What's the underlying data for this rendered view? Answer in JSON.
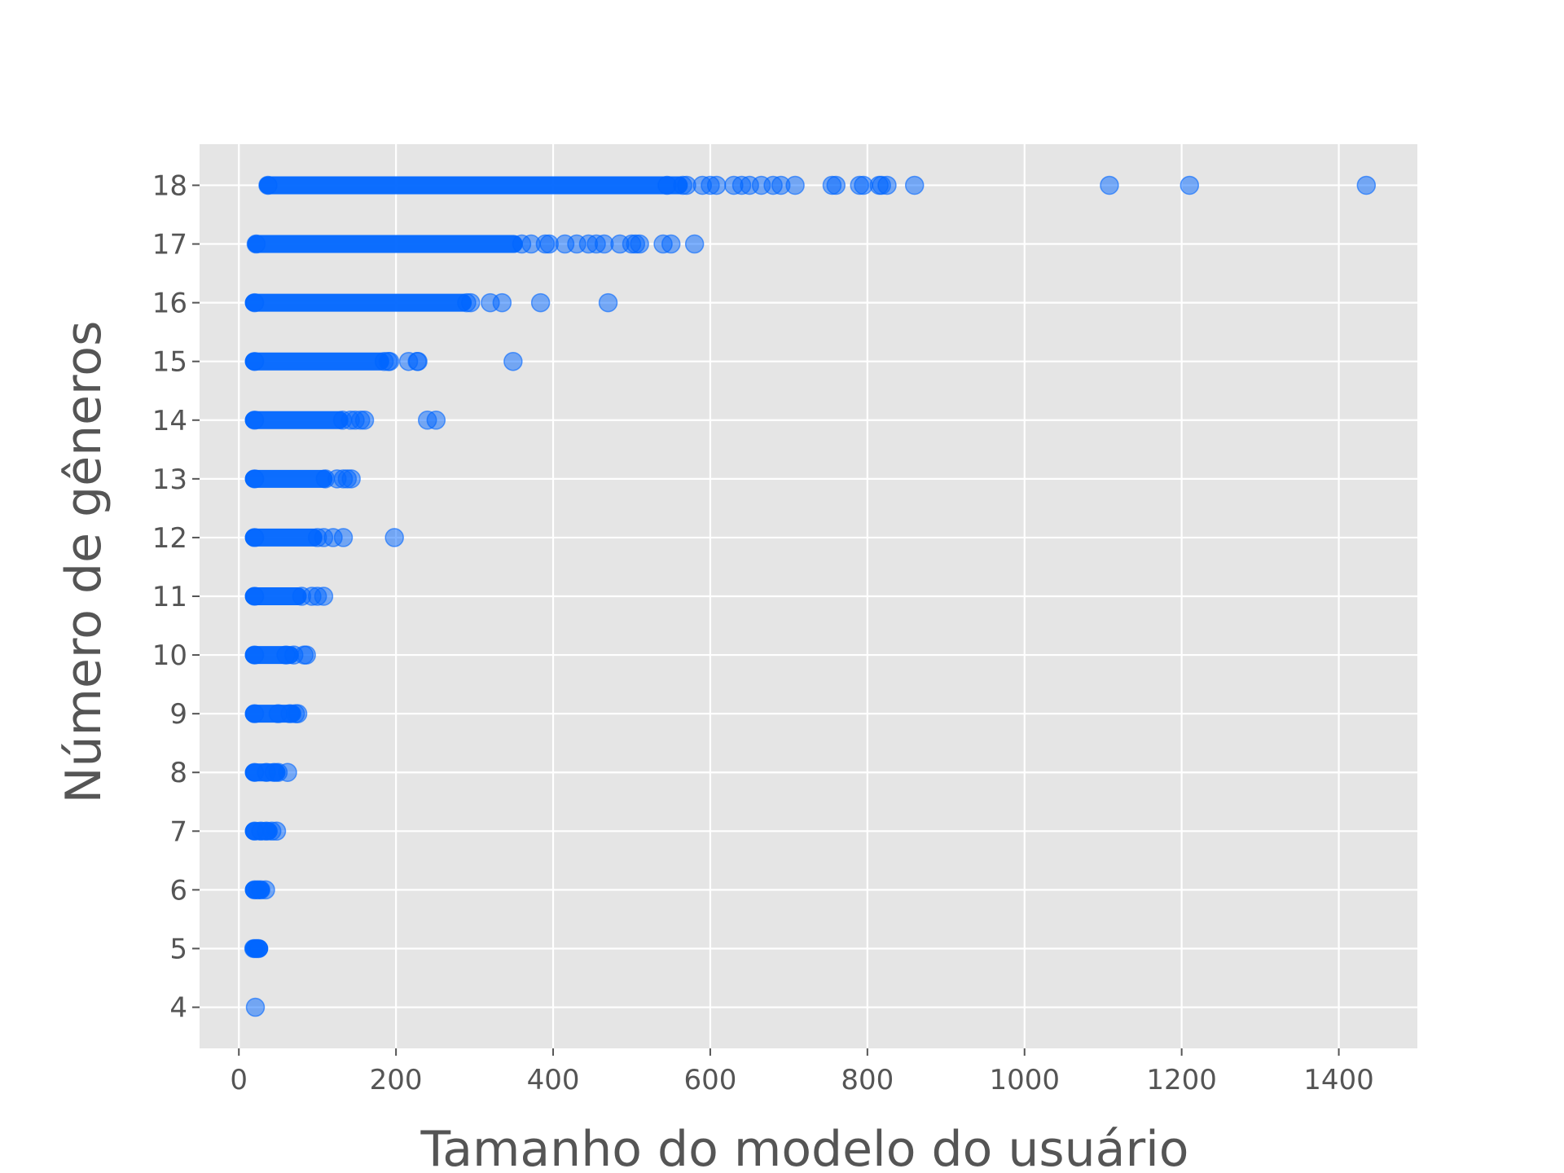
{
  "chart_data": {
    "type": "scatter",
    "title": "",
    "xlabel": "Tamanho do modelo do usuário",
    "ylabel": "Número de gêneros",
    "xlim": [
      -50,
      1500
    ],
    "ylim": [
      3.3,
      18.7
    ],
    "xticks": [
      0,
      200,
      400,
      600,
      800,
      1000,
      1200,
      1400
    ],
    "yticks": [
      4,
      5,
      6,
      7,
      8,
      9,
      10,
      11,
      12,
      13,
      14,
      15,
      16,
      17,
      18
    ],
    "grid": true,
    "background": "#e5e5e5",
    "grid_color": "#ffffff",
    "marker_color": "#0066ff",
    "marker_alpha": 0.5,
    "rows": [
      {
        "y": 4,
        "dense": null,
        "points": [
          21
        ]
      },
      {
        "y": 5,
        "dense": [
          19,
          26
        ],
        "points": [
          19,
          22,
          25
        ]
      },
      {
        "y": 6,
        "dense": [
          19,
          28
        ],
        "points": [
          20,
          24,
          28,
          34
        ]
      },
      {
        "y": 7,
        "dense": [
          19,
          38
        ],
        "points": [
          20,
          28,
          35,
          42,
          48
        ]
      },
      {
        "y": 8,
        "dense": [
          19,
          48
        ],
        "points": [
          20,
          35,
          45,
          50,
          62
        ]
      },
      {
        "y": 9,
        "dense": [
          19,
          68
        ],
        "points": [
          20,
          50,
          65,
          72,
          75
        ]
      },
      {
        "y": 10,
        "dense": [
          19,
          65
        ],
        "points": [
          20,
          60,
          70,
          83,
          86
        ]
      },
      {
        "y": 11,
        "dense": [
          19,
          75
        ],
        "points": [
          20,
          80,
          93,
          100,
          108
        ]
      },
      {
        "y": 12,
        "dense": [
          19,
          95
        ],
        "points": [
          20,
          100,
          108,
          120,
          133,
          198
        ]
      },
      {
        "y": 13,
        "dense": [
          19,
          108
        ],
        "points": [
          20,
          110,
          125,
          133,
          138,
          143
        ]
      },
      {
        "y": 14,
        "dense": [
          19,
          128
        ],
        "points": [
          20,
          132,
          142,
          148,
          155,
          160,
          240,
          251
        ]
      },
      {
        "y": 15,
        "dense": [
          19,
          180
        ],
        "points": [
          20,
          185,
          190,
          192,
          216,
          227,
          228,
          349
        ]
      },
      {
        "y": 16,
        "dense": [
          19,
          285
        ],
        "points": [
          20,
          290,
          295,
          320,
          335,
          384,
          470
        ]
      },
      {
        "y": 17,
        "dense": [
          22,
          350
        ],
        "points": [
          22,
          360,
          372,
          390,
          395,
          415,
          430,
          445,
          455,
          465,
          485,
          500,
          505,
          510,
          540,
          550,
          580
        ]
      },
      {
        "y": 18,
        "dense": [
          37,
          560
        ],
        "points": [
          37,
          545,
          565,
          570,
          590,
          600,
          608,
          630,
          640,
          650,
          665,
          680,
          690,
          708,
          755,
          760,
          790,
          795,
          815,
          818,
          825,
          860,
          1108,
          1210,
          1435
        ]
      }
    ]
  }
}
